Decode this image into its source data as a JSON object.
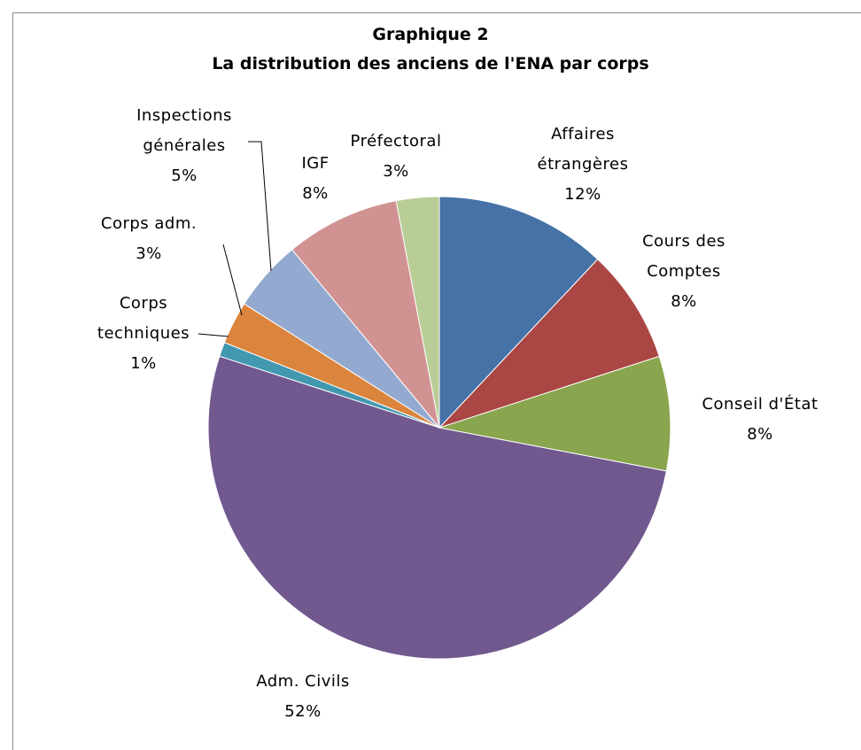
{
  "chart_data": {
    "type": "pie",
    "title": "Graphique 2",
    "subtitle": "La distribution des anciens de l'ENA par corps",
    "categories": [
      "Affaires étrangères",
      "Cours des Comptes",
      "Conseil d'État",
      "Adm. Civils",
      "Corps techniques",
      "Corps adm.",
      "Inspections générales",
      "IGF",
      "Préfectoral"
    ],
    "values": [
      12,
      8,
      8,
      52,
      1,
      3,
      5,
      8,
      3
    ],
    "value_labels": [
      "12%",
      "8%",
      "8%",
      "52%",
      "1%",
      "3%",
      "5%",
      "8%",
      "3%"
    ],
    "colors": [
      "#4572a7",
      "#aa4643",
      "#89a54e",
      "#71588f",
      "#4198af",
      "#db843d",
      "#93a9cf",
      "#d19392",
      "#b9cd96"
    ]
  }
}
